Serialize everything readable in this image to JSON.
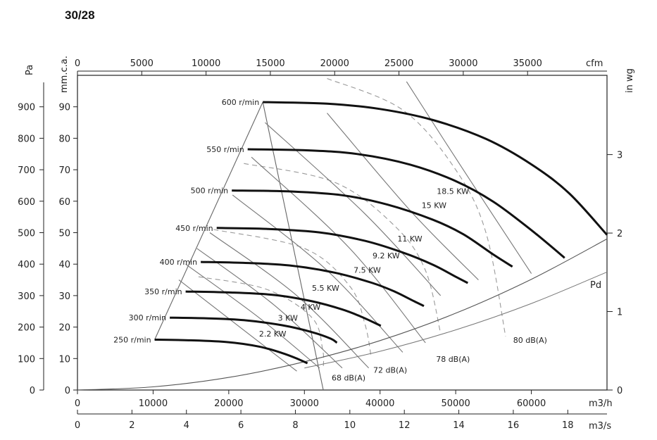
{
  "header": {
    "model_code": "30/28"
  },
  "chart_data": {
    "type": "line",
    "title": "",
    "axes": {
      "left_pa": {
        "unit": "Pa",
        "range": [
          0,
          1000
        ],
        "ticks": [
          0,
          100,
          200,
          300,
          400,
          500,
          600,
          700,
          800,
          900
        ]
      },
      "left_mmca": {
        "unit": "mm.c.a.",
        "range": [
          0,
          100
        ],
        "ticks": [
          0,
          10,
          20,
          30,
          40,
          50,
          60,
          70,
          80,
          90
        ]
      },
      "right_inwg": {
        "unit": "in wg",
        "range": [
          0,
          4.01
        ],
        "ticks": [
          0,
          1,
          2,
          3
        ]
      },
      "top_cfm": {
        "unit": "cfm",
        "range": [
          0,
          41177
        ],
        "ticks": [
          0,
          5000,
          10000,
          15000,
          20000,
          25000,
          30000,
          35000
        ]
      },
      "bottom_m3h": {
        "unit": "m3/h",
        "range": [
          0,
          70000
        ],
        "ticks": [
          0,
          10000,
          20000,
          30000,
          40000,
          50000,
          60000
        ]
      },
      "bottom_m3s": {
        "unit": "m3/s",
        "range": [
          0,
          19.44
        ],
        "ticks": [
          0,
          2,
          4,
          6,
          8,
          10,
          12,
          14,
          16,
          18
        ]
      }
    },
    "speed_curves": [
      {
        "name": "600 r/min",
        "points": [
          [
            24500,
            915
          ],
          [
            33000,
            910
          ],
          [
            40000,
            893
          ],
          [
            47000,
            858
          ],
          [
            54000,
            798
          ],
          [
            60000,
            717
          ],
          [
            65000,
            625
          ],
          [
            70000,
            493
          ]
        ]
      },
      {
        "name": "550 r/min",
        "points": [
          [
            22500,
            765
          ],
          [
            30000,
            762
          ],
          [
            37000,
            750
          ],
          [
            44000,
            716
          ],
          [
            50000,
            664
          ],
          [
            55000,
            598
          ],
          [
            60000,
            508
          ],
          [
            64400,
            420
          ]
        ]
      },
      {
        "name": "500 r/min",
        "points": [
          [
            20400,
            634
          ],
          [
            28000,
            631
          ],
          [
            35000,
            619
          ],
          [
            41000,
            589
          ],
          [
            47000,
            541
          ],
          [
            51000,
            495
          ],
          [
            55000,
            430
          ],
          [
            57500,
            392
          ]
        ]
      },
      {
        "name": "450 r/min",
        "points": [
          [
            18400,
            515
          ],
          [
            25000,
            512
          ],
          [
            32000,
            501
          ],
          [
            38000,
            474
          ],
          [
            43000,
            437
          ],
          [
            47000,
            398
          ],
          [
            50000,
            360
          ],
          [
            51600,
            340
          ]
        ]
      },
      {
        "name": "400 r/min",
        "points": [
          [
            16300,
            407
          ],
          [
            22000,
            404
          ],
          [
            28000,
            396
          ],
          [
            34000,
            373
          ],
          [
            39000,
            340
          ],
          [
            42000,
            312
          ],
          [
            44500,
            282
          ],
          [
            45800,
            267
          ]
        ]
      },
      {
        "name": "350 r/min",
        "points": [
          [
            14300,
            313
          ],
          [
            20000,
            310
          ],
          [
            26000,
            302
          ],
          [
            31000,
            282
          ],
          [
            35000,
            256
          ],
          [
            37800,
            230
          ],
          [
            40100,
            204
          ]
        ]
      },
      {
        "name": "300 r/min",
        "points": [
          [
            12200,
            230
          ],
          [
            17000,
            228
          ],
          [
            22000,
            222
          ],
          [
            27000,
            206
          ],
          [
            31000,
            184
          ],
          [
            33500,
            163
          ],
          [
            34300,
            150
          ]
        ]
      },
      {
        "name": "250 r/min",
        "points": [
          [
            10200,
            160
          ],
          [
            15000,
            158
          ],
          [
            20000,
            152
          ],
          [
            24000,
            138
          ],
          [
            27000,
            118
          ],
          [
            29000,
            100
          ],
          [
            30400,
            85
          ]
        ]
      }
    ],
    "power_lines": [
      {
        "name": "2.2 KW",
        "points": [
          [
            13400,
            350
          ],
          [
            22000,
            190
          ],
          [
            29000,
            60
          ]
        ]
      },
      {
        "name": "3 KW",
        "points": [
          [
            14300,
            400
          ],
          [
            24000,
            230
          ],
          [
            32000,
            70
          ]
        ]
      },
      {
        "name": "4 KW",
        "points": [
          [
            15800,
            450
          ],
          [
            26000,
            270
          ],
          [
            35000,
            70
          ]
        ]
      },
      {
        "name": "5.5 KW",
        "points": [
          [
            17500,
            500
          ],
          [
            29000,
            300
          ],
          [
            38500,
            70
          ]
        ]
      },
      {
        "name": "7.5 KW",
        "points": [
          [
            20500,
            620
          ],
          [
            33000,
            380
          ],
          [
            43000,
            120
          ]
        ]
      },
      {
        "name": "9.2 KW",
        "points": [
          [
            23000,
            740
          ],
          [
            36000,
            450
          ],
          [
            46000,
            150
          ]
        ]
      },
      {
        "name": "11 KW",
        "points": [
          [
            24800,
            850
          ],
          [
            38000,
            560
          ],
          [
            48000,
            300
          ]
        ]
      },
      {
        "name": "15 KW",
        "points": [
          [
            33000,
            880
          ],
          [
            44000,
            570
          ],
          [
            53000,
            350
          ]
        ]
      },
      {
        "name": "18.5 KW",
        "points": [
          [
            43500,
            980
          ],
          [
            51000,
            700
          ],
          [
            60000,
            370
          ]
        ]
      }
    ],
    "noise_curves": [
      {
        "name": "68 dB(A)",
        "points": [
          [
            16000,
            360
          ],
          [
            25000,
            320
          ],
          [
            31000,
            230
          ],
          [
            32400,
            130
          ],
          [
            32500,
            70
          ]
        ]
      },
      {
        "name": "72 dB(A)",
        "points": [
          [
            18000,
            510
          ],
          [
            30000,
            450
          ],
          [
            36000,
            330
          ],
          [
            38000,
            210
          ],
          [
            38800,
            110
          ]
        ]
      },
      {
        "name": "78 dB(A)",
        "points": [
          [
            22000,
            720
          ],
          [
            34000,
            660
          ],
          [
            42000,
            520
          ],
          [
            46000,
            380
          ],
          [
            48000,
            180
          ]
        ]
      },
      {
        "name": "80 dB(A)",
        "points": [
          [
            33000,
            990
          ],
          [
            43000,
            890
          ],
          [
            50000,
            700
          ],
          [
            54000,
            500
          ],
          [
            56600,
            170
          ]
        ]
      }
    ],
    "operating_limit_lines": [
      {
        "name": "",
        "points": [
          [
            24500,
            915
          ],
          [
            10200,
            160
          ]
        ]
      },
      {
        "name": "",
        "points": [
          [
            24500,
            915
          ],
          [
            32500,
            0
          ]
        ]
      }
    ],
    "dynamic_pressure": {
      "name": "Pd",
      "points": [
        [
          0,
          0
        ],
        [
          10000,
          10
        ],
        [
          20000,
          40
        ],
        [
          30000,
          90
        ],
        [
          40000,
          157
        ],
        [
          50000,
          244
        ],
        [
          60000,
          352
        ],
        [
          70000,
          480
        ]
      ]
    },
    "dynamic_pressure_2": {
      "name": "",
      "points": [
        [
          30000,
          70
        ],
        [
          40000,
          123
        ],
        [
          50000,
          191
        ],
        [
          60000,
          275
        ],
        [
          70000,
          375
        ]
      ]
    },
    "labels": {
      "power_label_positions": [
        {
          "text": "2.2 KW",
          "x": 24000,
          "y": 170
        },
        {
          "text": "3 KW",
          "x": 26500,
          "y": 220
        },
        {
          "text": "4 KW",
          "x": 29500,
          "y": 255
        },
        {
          "text": "5.5 KW",
          "x": 31000,
          "y": 315
        },
        {
          "text": "7.5 KW",
          "x": 36500,
          "y": 372
        },
        {
          "text": "9.2 KW",
          "x": 39000,
          "y": 418
        },
        {
          "text": "11 KW",
          "x": 42300,
          "y": 472
        },
        {
          "text": "15 KW",
          "x": 45500,
          "y": 578
        },
        {
          "text": "18.5 KW",
          "x": 47500,
          "y": 623
        }
      ],
      "noise_label_positions": [
        {
          "text": "68 dB(A)",
          "x": 33600,
          "y": 30
        },
        {
          "text": "72 dB(A)",
          "x": 39100,
          "y": 55
        },
        {
          "text": "78 dB(A)",
          "x": 47400,
          "y": 90
        },
        {
          "text": "80 dB(A)",
          "x": 57600,
          "y": 150
        }
      ]
    }
  }
}
